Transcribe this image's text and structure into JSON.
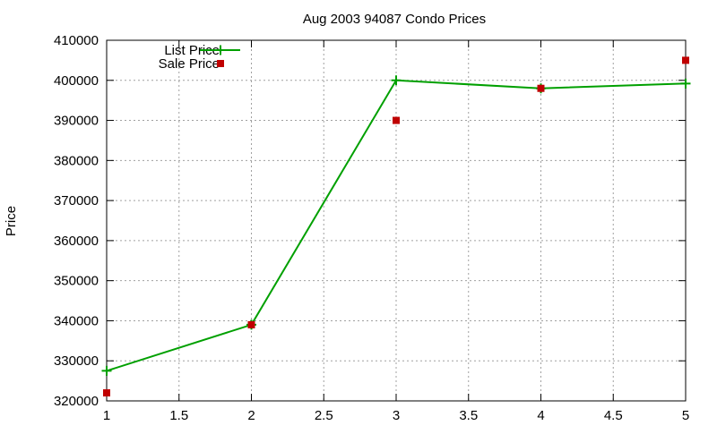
{
  "chart_data": {
    "type": "line",
    "title": "Aug 2003 94087 Condo Prices",
    "xlabel": "",
    "ylabel": "Price",
    "xlim": [
      1,
      5
    ],
    "ylim": [
      320000,
      410000
    ],
    "x_ticks": [
      "1",
      "1.5",
      "2",
      "2.5",
      "3",
      "3.5",
      "4",
      "4.5",
      "5"
    ],
    "y_ticks": [
      "320000",
      "330000",
      "340000",
      "350000",
      "360000",
      "370000",
      "380000",
      "390000",
      "400000",
      "410000"
    ],
    "grid": true,
    "legend_position": "top-left",
    "series": [
      {
        "name": "List Price",
        "style": "line-with-plus-markers",
        "color": "#00a000",
        "x": [
          1,
          2,
          3,
          4,
          5
        ],
        "y": [
          327500,
          339000,
          400000,
          398000,
          399200
        ]
      },
      {
        "name": "Sale Price",
        "style": "square-markers",
        "color": "#c00000",
        "x": [
          1,
          2,
          3,
          4,
          5
        ],
        "y": [
          322000,
          339000,
          390000,
          398000,
          405000
        ]
      }
    ]
  }
}
